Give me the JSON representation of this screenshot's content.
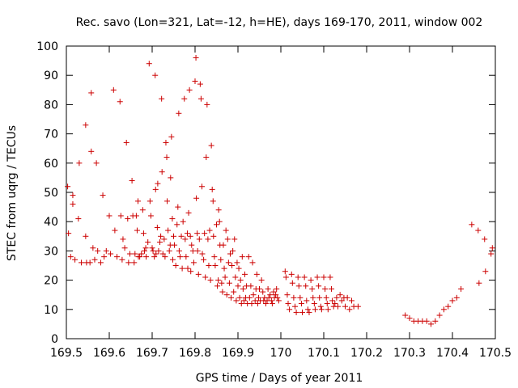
{
  "chart_data": {
    "type": "scatter",
    "title": "Rec. savo (Lon=321, Lat=-12, h=HE), days 169-170, 2011, window 002",
    "xlabel": "GPS time / Days of year 2011",
    "ylabel": "STEC from uqrg / TECUs",
    "xlim": [
      169.5,
      170.5
    ],
    "ylim": [
      0,
      100
    ],
    "x_ticks": [
      "169.5",
      "169.6",
      "169.7",
      "169.8",
      "169.9",
      "170",
      "170.1",
      "170.2",
      "170.3",
      "170.4",
      "170.5"
    ],
    "y_ticks": [
      "0",
      "10",
      "20",
      "30",
      "40",
      "50",
      "60",
      "70",
      "80",
      "90",
      "100"
    ],
    "grid": false,
    "legend": "none",
    "marker": "+",
    "marker_color": "#cc0000",
    "points": [
      [
        169.503,
        52
      ],
      [
        169.505,
        36
      ],
      [
        169.51,
        28
      ],
      [
        169.515,
        49
      ],
      [
        169.515,
        46
      ],
      [
        169.52,
        27
      ],
      [
        169.528,
        41
      ],
      [
        169.53,
        60
      ],
      [
        169.535,
        26
      ],
      [
        169.545,
        73
      ],
      [
        169.545,
        35
      ],
      [
        169.547,
        26
      ],
      [
        169.555,
        26
      ],
      [
        169.558,
        84
      ],
      [
        169.558,
        64
      ],
      [
        169.562,
        31
      ],
      [
        169.566,
        27
      ],
      [
        169.57,
        60
      ],
      [
        169.573,
        30
      ],
      [
        169.58,
        26
      ],
      [
        169.585,
        49
      ],
      [
        169.588,
        28
      ],
      [
        169.593,
        30
      ],
      [
        169.6,
        42
      ],
      [
        169.603,
        29
      ],
      [
        169.61,
        85
      ],
      [
        169.613,
        37
      ],
      [
        169.618,
        28
      ],
      [
        169.625,
        81
      ],
      [
        169.627,
        42
      ],
      [
        169.63,
        27
      ],
      [
        169.632,
        34
      ],
      [
        169.636,
        31
      ],
      [
        169.64,
        67
      ],
      [
        169.643,
        41
      ],
      [
        169.645,
        26
      ],
      [
        169.648,
        29
      ],
      [
        169.653,
        54
      ],
      [
        169.655,
        42
      ],
      [
        169.658,
        26
      ],
      [
        169.66,
        29
      ],
      [
        169.663,
        42
      ],
      [
        169.665,
        37
      ],
      [
        169.667,
        47
      ],
      [
        169.668,
        28
      ],
      [
        169.671,
        28
      ],
      [
        169.675,
        29
      ],
      [
        169.678,
        44
      ],
      [
        169.68,
        36
      ],
      [
        169.682,
        30
      ],
      [
        169.685,
        31
      ],
      [
        169.686,
        28
      ],
      [
        169.69,
        33
      ],
      [
        169.693,
        94
      ],
      [
        169.695,
        47
      ],
      [
        169.697,
        42
      ],
      [
        169.7,
        31
      ],
      [
        169.702,
        30
      ],
      [
        169.705,
        28
      ],
      [
        169.707,
        90
      ],
      [
        169.708,
        51
      ],
      [
        169.709,
        29
      ],
      [
        169.712,
        38
      ],
      [
        169.713,
        53
      ],
      [
        169.715,
        30
      ],
      [
        169.718,
        33
      ],
      [
        169.72,
        35
      ],
      [
        169.722,
        82
      ],
      [
        169.723,
        57
      ],
      [
        169.725,
        29
      ],
      [
        169.728,
        34
      ],
      [
        169.73,
        28
      ],
      [
        169.732,
        67
      ],
      [
        169.734,
        62
      ],
      [
        169.735,
        47
      ],
      [
        169.737,
        37
      ],
      [
        169.74,
        30
      ],
      [
        169.742,
        32
      ],
      [
        169.743,
        55
      ],
      [
        169.745,
        69
      ],
      [
        169.747,
        41
      ],
      [
        169.748,
        27
      ],
      [
        169.75,
        35
      ],
      [
        169.752,
        32
      ],
      [
        169.755,
        25
      ],
      [
        169.758,
        39
      ],
      [
        169.76,
        45
      ],
      [
        169.762,
        77
      ],
      [
        169.763,
        30
      ],
      [
        169.765,
        28
      ],
      [
        169.768,
        35
      ],
      [
        169.77,
        24
      ],
      [
        169.772,
        40
      ],
      [
        169.775,
        82
      ],
      [
        169.777,
        34
      ],
      [
        169.779,
        28
      ],
      [
        169.782,
        36
      ],
      [
        169.783,
        24
      ],
      [
        169.785,
        43
      ],
      [
        169.787,
        85
      ],
      [
        169.789,
        35
      ],
      [
        169.79,
        23
      ],
      [
        169.792,
        32
      ],
      [
        169.795,
        30
      ],
      [
        169.797,
        26
      ],
      [
        169.8,
        88
      ],
      [
        169.802,
        96
      ],
      [
        169.803,
        48
      ],
      [
        169.805,
        36
      ],
      [
        169.806,
        30
      ],
      [
        169.808,
        22
      ],
      [
        169.81,
        34
      ],
      [
        169.812,
        87
      ],
      [
        169.814,
        82
      ],
      [
        169.816,
        52
      ],
      [
        169.817,
        29
      ],
      [
        169.82,
        27
      ],
      [
        169.822,
        36
      ],
      [
        169.824,
        21
      ],
      [
        169.826,
        62
      ],
      [
        169.828,
        80
      ],
      [
        169.83,
        34
      ],
      [
        169.832,
        25
      ],
      [
        169.834,
        37
      ],
      [
        169.836,
        20
      ],
      [
        169.838,
        66
      ],
      [
        169.84,
        51
      ],
      [
        169.842,
        47
      ],
      [
        169.843,
        35
      ],
      [
        169.845,
        28
      ],
      [
        169.847,
        25
      ],
      [
        169.85,
        39
      ],
      [
        169.852,
        18
      ],
      [
        169.854,
        20
      ],
      [
        169.855,
        44
      ],
      [
        169.857,
        40
      ],
      [
        169.858,
        32
      ],
      [
        169.86,
        27
      ],
      [
        169.862,
        19
      ],
      [
        169.864,
        16
      ],
      [
        169.866,
        32
      ],
      [
        169.868,
        24
      ],
      [
        169.87,
        21
      ],
      [
        169.872,
        37
      ],
      [
        169.874,
        15
      ],
      [
        169.876,
        34
      ],
      [
        169.878,
        26
      ],
      [
        169.88,
        19
      ],
      [
        169.882,
        29
      ],
      [
        169.884,
        14
      ],
      [
        169.886,
        25
      ],
      [
        169.888,
        30
      ],
      [
        169.89,
        16
      ],
      [
        169.892,
        34
      ],
      [
        169.894,
        21
      ],
      [
        169.896,
        13
      ],
      [
        169.898,
        26
      ],
      [
        169.9,
        18
      ],
      [
        169.902,
        24
      ],
      [
        169.904,
        14
      ],
      [
        169.906,
        20
      ],
      [
        169.908,
        12
      ],
      [
        169.91,
        28
      ],
      [
        169.912,
        17
      ],
      [
        169.914,
        13
      ],
      [
        169.916,
        22
      ],
      [
        169.918,
        14
      ],
      [
        169.92,
        18
      ],
      [
        169.922,
        12
      ],
      [
        169.925,
        28
      ],
      [
        169.927,
        14
      ],
      [
        169.93,
        18
      ],
      [
        169.932,
        12
      ],
      [
        169.934,
        26
      ],
      [
        169.936,
        15
      ],
      [
        169.94,
        13
      ],
      [
        169.942,
        17
      ],
      [
        169.944,
        22
      ],
      [
        169.946,
        12
      ],
      [
        169.948,
        14
      ],
      [
        169.95,
        17
      ],
      [
        169.952,
        13
      ],
      [
        169.955,
        20
      ],
      [
        169.958,
        16
      ],
      [
        169.96,
        13
      ],
      [
        169.962,
        14
      ],
      [
        169.965,
        12
      ],
      [
        169.968,
        13
      ],
      [
        169.97,
        17
      ],
      [
        169.972,
        14
      ],
      [
        169.975,
        15
      ],
      [
        169.978,
        13
      ],
      [
        169.98,
        12
      ],
      [
        169.983,
        16
      ],
      [
        169.985,
        14
      ],
      [
        169.988,
        15
      ],
      [
        169.99,
        17
      ],
      [
        169.992,
        14
      ],
      [
        169.995,
        13
      ],
      [
        170.01,
        23
      ],
      [
        170.012,
        21
      ],
      [
        170.015,
        15
      ],
      [
        170.017,
        12
      ],
      [
        170.02,
        10
      ],
      [
        170.025,
        22
      ],
      [
        170.027,
        19
      ],
      [
        170.03,
        14
      ],
      [
        170.033,
        11
      ],
      [
        170.036,
        9
      ],
      [
        170.04,
        21
      ],
      [
        170.042,
        18
      ],
      [
        170.045,
        14
      ],
      [
        170.048,
        12
      ],
      [
        170.05,
        9
      ],
      [
        170.055,
        21
      ],
      [
        170.058,
        18
      ],
      [
        170.06,
        13
      ],
      [
        170.063,
        10
      ],
      [
        170.066,
        9
      ],
      [
        170.07,
        20
      ],
      [
        170.073,
        17
      ],
      [
        170.075,
        14
      ],
      [
        170.078,
        12
      ],
      [
        170.08,
        10
      ],
      [
        170.085,
        21
      ],
      [
        170.088,
        18
      ],
      [
        170.09,
        14
      ],
      [
        170.093,
        11
      ],
      [
        170.095,
        10
      ],
      [
        170.1,
        21
      ],
      [
        170.103,
        17
      ],
      [
        170.106,
        14
      ],
      [
        170.108,
        12
      ],
      [
        170.11,
        10
      ],
      [
        170.115,
        21
      ],
      [
        170.118,
        17
      ],
      [
        170.12,
        13
      ],
      [
        170.123,
        11
      ],
      [
        170.126,
        12
      ],
      [
        170.13,
        14
      ],
      [
        170.133,
        11
      ],
      [
        170.138,
        15
      ],
      [
        170.142,
        13
      ],
      [
        170.147,
        14
      ],
      [
        170.15,
        11
      ],
      [
        170.155,
        14
      ],
      [
        170.16,
        10
      ],
      [
        170.165,
        13
      ],
      [
        170.17,
        11
      ],
      [
        170.18,
        11
      ],
      [
        170.29,
        8
      ],
      [
        170.3,
        7
      ],
      [
        170.31,
        6
      ],
      [
        170.32,
        6
      ],
      [
        170.33,
        6
      ],
      [
        170.34,
        6
      ],
      [
        170.35,
        5
      ],
      [
        170.36,
        6
      ],
      [
        170.37,
        8
      ],
      [
        170.38,
        10
      ],
      [
        170.39,
        11
      ],
      [
        170.4,
        13
      ],
      [
        170.41,
        14
      ],
      [
        170.42,
        17
      ],
      [
        170.445,
        39
      ],
      [
        170.46,
        37
      ],
      [
        170.462,
        19
      ],
      [
        170.475,
        34
      ],
      [
        170.477,
        23
      ],
      [
        170.49,
        29
      ],
      [
        170.493,
        31
      ]
    ]
  }
}
